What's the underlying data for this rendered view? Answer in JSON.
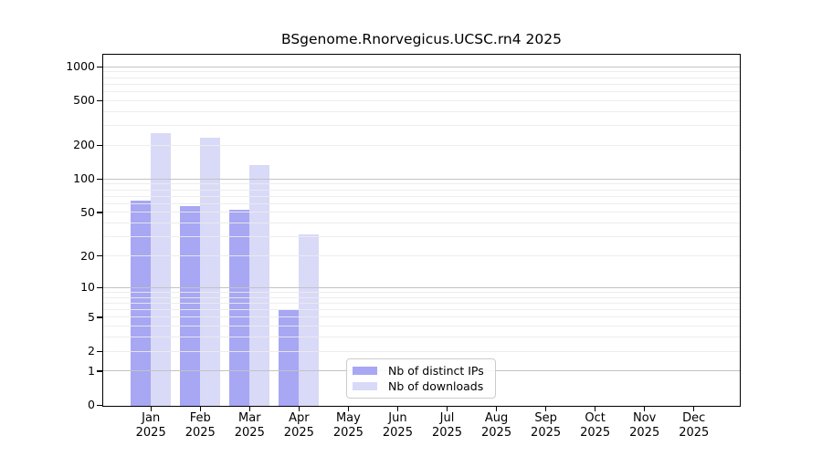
{
  "title": "BSgenome.Rnorvegicus.UCSC.rn4 2025",
  "chart_data": {
    "type": "bar",
    "title": "BSgenome.Rnorvegicus.UCSC.rn4 2025",
    "categories": [
      "Jan",
      "Feb",
      "Mar",
      "Apr",
      "May",
      "Jun",
      "Jul",
      "Aug",
      "Sep",
      "Oct",
      "Nov",
      "Dec"
    ],
    "category_year": "2025",
    "series": [
      {
        "name": "Nb of distinct IPs",
        "color": "#a7a7f4",
        "values": [
          65,
          58,
          53,
          6,
          null,
          null,
          null,
          null,
          null,
          null,
          null,
          null
        ]
      },
      {
        "name": "Nb of downloads",
        "color": "#d9d9f8",
        "values": [
          260,
          235,
          135,
          32,
          null,
          null,
          null,
          null,
          null,
          null,
          null,
          null
        ]
      }
    ],
    "y_axis": {
      "scale": "log10(1+x)",
      "ticks": [
        0,
        1,
        2,
        5,
        10,
        20,
        50,
        100,
        200,
        500,
        1000
      ],
      "tick_labels": [
        "0",
        "1",
        "2",
        "5",
        "10",
        "20",
        "50",
        "100",
        "200",
        "500",
        "1000"
      ],
      "major_gridlines": [
        1,
        10,
        100,
        1000
      ],
      "range_max": 1000
    },
    "x_axis": {
      "tick_labels_line2": "2025"
    },
    "legend": {
      "position": "lower-center",
      "items": [
        "Nb of distinct IPs",
        "Nb of downloads"
      ]
    },
    "grid": true,
    "colors": {
      "major_grid": "#c3c3c3",
      "minor_grid": "#ebebeb",
      "axis": "#000000",
      "background": "#ffffff"
    }
  }
}
